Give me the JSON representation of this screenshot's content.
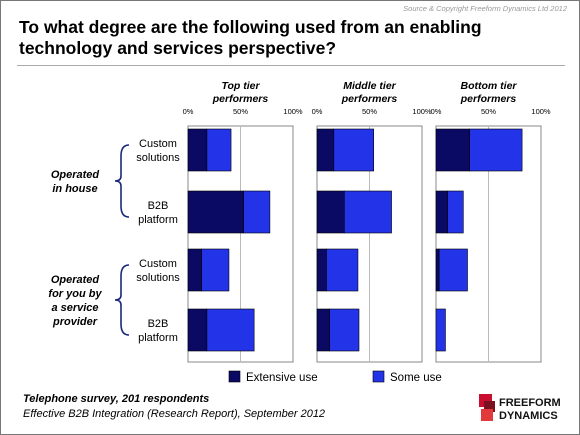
{
  "source": "Source & Copyright Freeform Dynamics Ltd 2012",
  "title": "To what degree are the following used from an enabling technology and services perspective?",
  "chart_data": {
    "type": "bar",
    "orientation": "horizontal",
    "stacked": true,
    "xlim": [
      0,
      100
    ],
    "ticks": [
      "0%",
      "50%",
      "100%"
    ],
    "groups": [
      {
        "label_lines": [
          "Operated",
          "in house"
        ],
        "categories": [
          [
            "Custom",
            "solutions"
          ],
          [
            "B2B",
            "platform"
          ]
        ]
      },
      {
        "label_lines": [
          "Operated",
          "for you by",
          "a service",
          "provider"
        ],
        "categories": [
          [
            "Custom",
            "solutions"
          ],
          [
            "B2B",
            "platform"
          ]
        ]
      }
    ],
    "panels": [
      {
        "title_lines": [
          "Top tier",
          "performers"
        ],
        "series": [
          {
            "name": "Extensive use",
            "values": [
              18,
              53,
              13,
              18
            ]
          },
          {
            "name": "Some use",
            "values": [
              23,
              25,
              26,
              45
            ]
          }
        ]
      },
      {
        "title_lines": [
          "Middle tier",
          "performers"
        ],
        "series": [
          {
            "name": "Extensive use",
            "values": [
              16,
              26,
              9,
              12
            ]
          },
          {
            "name": "Some use",
            "values": [
              38,
              45,
              30,
              28
            ]
          }
        ]
      },
      {
        "title_lines": [
          "Bottom tier",
          "performers"
        ],
        "series": [
          {
            "name": "Extensive use",
            "values": [
              32,
              11,
              3,
              0
            ]
          },
          {
            "name": "Some use",
            "values": [
              50,
              15,
              27,
              9
            ]
          }
        ]
      }
    ],
    "legend": [
      {
        "name": "Extensive use",
        "color": "#0a0a64"
      },
      {
        "name": "Some use",
        "color": "#2233e8"
      }
    ],
    "legend_position": "bottom"
  },
  "footer": {
    "line1": "Telephone survey, 201 respondents",
    "line2": "Effective B2B Integration (Research Report), September 2012"
  },
  "logo": {
    "line1": "FREEFORM",
    "line2": "DYNAMICS"
  },
  "colors": {
    "extensive": "#0a0a64",
    "some": "#2233e8",
    "gridline": "#bbbbbb",
    "logo_red": "#c8102e"
  }
}
